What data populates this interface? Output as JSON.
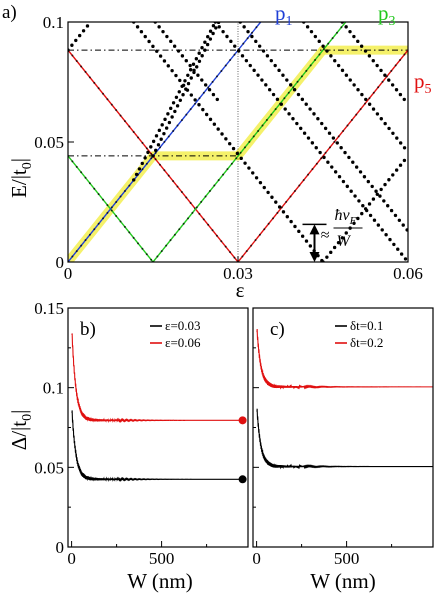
{
  "chart_data": [
    {
      "type": "line",
      "panel": "a)",
      "xlabel": "ε",
      "ylabel": "E/|t0|",
      "ylabel_main": "E/|t",
      "ylabel_sub": "0",
      "ylabel_tail": "|",
      "xlim": [
        0,
        0.06
      ],
      "ylim": [
        0,
        0.1
      ],
      "xticks": [
        0,
        0.03,
        0.06
      ],
      "xtick_labels": [
        "0",
        "0.03",
        "0.06"
      ],
      "yticks": [
        0,
        0.05,
        0.1
      ],
      "ytick_labels": [
        "0",
        "0.05",
        "0.1"
      ],
      "series_labels": [
        {
          "text": "p",
          "sub": "1",
          "color": "#1f3fd6"
        },
        {
          "text": "p",
          "sub": "3",
          "color": "#22c81e"
        },
        {
          "text": "p",
          "sub": "5",
          "color": "#e01010"
        }
      ],
      "lines": [
        {
          "color": "#e01010",
          "style": "solid",
          "points": [
            [
              0,
              0.0883
            ],
            [
              0.03,
              0
            ]
          ]
        },
        {
          "color": "#e01010",
          "style": "solid",
          "points": [
            [
              0.03,
              0
            ],
            [
              0.06,
              0.0883
            ]
          ]
        },
        {
          "color": "#22c81e",
          "style": "solid",
          "points": [
            [
              0,
              0.0442
            ],
            [
              0.015,
              0
            ]
          ]
        },
        {
          "color": "#22c81e",
          "style": "solid",
          "points": [
            [
              0.015,
              0
            ],
            [
              0.045,
              0.0883
            ],
            [
              0.049,
              0.1
            ]
          ]
        },
        {
          "color": "#1f3fd6",
          "style": "solid",
          "points": [
            [
              0,
              0
            ],
            [
              0.034,
              0.1
            ]
          ]
        },
        {
          "color": "#000000",
          "style": "dotted",
          "points": [
            [
              0,
              0.0883
            ],
            [
              0.004,
              0.1
            ]
          ]
        },
        {
          "color": "#000000",
          "style": "dotted",
          "points": [
            [
              0.0116,
              0.1
            ],
            [
              0.045,
              0
            ]
          ]
        },
        {
          "color": "#000000",
          "style": "dotted",
          "points": [
            [
              0.045,
              0
            ],
            [
              0.06,
              0.0442
            ]
          ]
        },
        {
          "color": "#000000",
          "style": "dotted",
          "points": [
            [
              0.015,
              0.0442
            ],
            [
              0.0266,
              0.1
            ]
          ]
        },
        {
          "color": "#000000",
          "style": "dotted",
          "points": [
            [
              0.0116,
              0.0342
            ],
            [
              0.026,
              0.1
            ]
          ]
        },
        {
          "color": "#000000",
          "style": "dotted",
          "points": [
            [
              0.0154,
              0.1
            ],
            [
              0.0266,
              0.067
            ]
          ]
        },
        {
          "color": "#000000",
          "style": "dotted",
          "points": [
            [
              0.026,
              0.1
            ],
            [
              0.06,
              0
            ]
          ]
        },
        {
          "color": "#000000",
          "style": "dotted",
          "points": [
            [
              0.0304,
              0.1
            ],
            [
              0.06,
              0.0129
            ]
          ]
        },
        {
          "color": "#000000",
          "style": "dotted",
          "points": [
            [
              0.0484,
              0.1
            ],
            [
              0.06,
              0.0658
            ]
          ]
        },
        {
          "color": "#000000",
          "style": "dotted",
          "points": [
            [
              0.0416,
              0.1
            ],
            [
              0.06,
              0.0458
            ]
          ]
        }
      ],
      "hlines": [
        {
          "y": 0.0883,
          "x": [
            0,
            0.06
          ],
          "style": "dashdot"
        },
        {
          "y": 0.0442,
          "x": [
            0,
            0.03
          ],
          "style": "dashdot"
        }
      ],
      "vlines": [
        {
          "x": 0.03,
          "y": [
            0,
            0.1
          ],
          "style": "dotted-thin"
        }
      ],
      "highlights": [
        {
          "points": [
            [
              0,
              0
            ],
            [
              0.015,
              0.0442
            ]
          ]
        },
        {
          "points": [
            [
              0.015,
              0.0442
            ],
            [
              0.03,
              0.0442
            ]
          ]
        },
        {
          "points": [
            [
              0.03,
              0.0442
            ],
            [
              0.045,
              0.0883
            ]
          ]
        },
        {
          "points": [
            [
              0.045,
              0.0883
            ],
            [
              0.06,
              0.0883
            ]
          ]
        }
      ],
      "annotation": {
        "approx": "≈",
        "numerator": "ħv",
        "numerator_sub": "F",
        "denominator": "W",
        "arrow_y": [
          0.0157,
          0
        ],
        "arrow_x": 0.0435
      }
    },
    {
      "type": "line",
      "panel": "b)",
      "xlabel": "W (nm)",
      "ylabel": "Δ/|t0|",
      "ylabel_main": "Δ/|t",
      "ylabel_sub": "0",
      "ylabel_tail": "|",
      "xlim": [
        -20,
        980
      ],
      "ylim": [
        0,
        0.15
      ],
      "xticks": [
        0,
        500
      ],
      "xtick_labels": [
        "0",
        "500"
      ],
      "yticks": [
        0,
        0.05,
        0.1,
        0.15
      ],
      "ytick_labels": [
        "0",
        "0.05",
        "0.1",
        "0.15"
      ],
      "legend_position": "top-right",
      "series": [
        {
          "name": "ε=0.03",
          "color": "#000000",
          "asymptote": 0.0425,
          "start": 0.09,
          "end_marker": true
        },
        {
          "name": "ε=0.06",
          "color": "#e01010",
          "asymptote": 0.0795,
          "start": 0.14,
          "end_marker": true
        }
      ],
      "x_end": 950
    },
    {
      "type": "line",
      "panel": "c)",
      "xlabel": "W (nm)",
      "xlim": [
        -20,
        980
      ],
      "ylim": [
        0,
        0.15
      ],
      "xticks": [
        0,
        500
      ],
      "xtick_labels": [
        "0",
        "500"
      ],
      "legend_position": "top-right",
      "series": [
        {
          "name": "δt=0.1",
          "color": "#000000",
          "asymptote": 0.0505,
          "start": 0.09,
          "end_marker": false
        },
        {
          "name": "δt=0.2",
          "color": "#e01010",
          "asymptote": 0.1005,
          "start": 0.14,
          "end_marker": false
        }
      ],
      "x_end": 980
    }
  ]
}
